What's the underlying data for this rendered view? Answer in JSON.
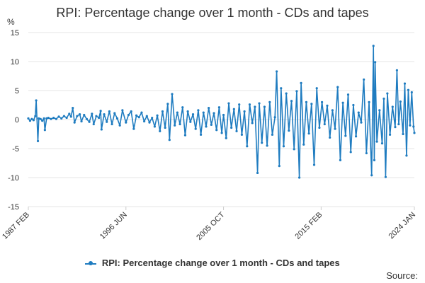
{
  "title": "RPI: Percentage change over 1 month - CDs and tapes",
  "unit_label": "%",
  "source_label": "Source:",
  "colors": {
    "series": "#1f7cc0",
    "grid": "#e6e6e6",
    "text": "#333333"
  },
  "chart_data": {
    "type": "line",
    "title": "RPI: Percentage change over 1 month - CDs and tapes",
    "xlabel": "",
    "ylabel": "%",
    "ylim": [
      -15,
      15
    ],
    "y_ticks": [
      15,
      10,
      5,
      0,
      -5,
      -10,
      -15
    ],
    "x_range": [
      "1987-02",
      "2024-01"
    ],
    "x_tick_labels": [
      {
        "label": "1987 FEB",
        "date": "1987-02"
      },
      {
        "label": "1996 JUN",
        "date": "1996-06"
      },
      {
        "label": "2005 OCT",
        "date": "2005-10"
      },
      {
        "label": "2015 FEB",
        "date": "2015-02"
      },
      {
        "label": "2024 JAN",
        "date": "2024-01"
      }
    ],
    "grid": true,
    "legend_position": "bottom",
    "series": [
      {
        "name": "RPI: Percentage change over 1 month - CDs and tapes",
        "points": [
          [
            "1987-02",
            0.2
          ],
          [
            "1987-04",
            -0.2
          ],
          [
            "1987-06",
            0.1
          ],
          [
            "1987-08",
            -0.1
          ],
          [
            "1987-10",
            0.6
          ],
          [
            "1987-11",
            3.3
          ],
          [
            "1988-01",
            -3.7
          ],
          [
            "1988-02",
            0.2
          ],
          [
            "1988-04",
            0.1
          ],
          [
            "1988-06",
            -0.2
          ],
          [
            "1988-08",
            0.2
          ],
          [
            "1988-09",
            -1.8
          ],
          [
            "1988-11",
            0.2
          ],
          [
            "1989-01",
            0.3
          ],
          [
            "1989-04",
            0.1
          ],
          [
            "1989-07",
            0.3
          ],
          [
            "1989-10",
            0.1
          ],
          [
            "1990-01",
            0.5
          ],
          [
            "1990-04",
            0.2
          ],
          [
            "1990-07",
            0.6
          ],
          [
            "1990-10",
            0.3
          ],
          [
            "1991-01",
            1.0
          ],
          [
            "1991-03",
            0.5
          ],
          [
            "1991-05",
            2.0
          ],
          [
            "1991-07",
            -0.5
          ],
          [
            "1991-10",
            0.6
          ],
          [
            "1992-01",
            0.9
          ],
          [
            "1992-03",
            -0.3
          ],
          [
            "1992-06",
            0.8
          ],
          [
            "1992-09",
            0.1
          ],
          [
            "1992-12",
            -0.4
          ],
          [
            "1993-03",
            1.0
          ],
          [
            "1993-05",
            -0.8
          ],
          [
            "1993-08",
            0.6
          ],
          [
            "1993-11",
            0.3
          ],
          [
            "1994-01",
            1.5
          ],
          [
            "1994-02",
            -1.7
          ],
          [
            "1994-05",
            0.9
          ],
          [
            "1994-08",
            -0.4
          ],
          [
            "1994-11",
            1.4
          ],
          [
            "1995-02",
            -0.8
          ],
          [
            "1995-05",
            1.1
          ],
          [
            "1995-08",
            0.2
          ],
          [
            "1995-11",
            -1.0
          ],
          [
            "1996-02",
            1.6
          ],
          [
            "1996-06",
            -0.5
          ],
          [
            "1996-09",
            0.8
          ],
          [
            "1996-12",
            1.4
          ],
          [
            "1997-03",
            -1.6
          ],
          [
            "1997-06",
            0.7
          ],
          [
            "1997-09",
            0.4
          ],
          [
            "1997-12",
            1.2
          ],
          [
            "1998-03",
            -0.3
          ],
          [
            "1998-06",
            0.6
          ],
          [
            "1998-09",
            -0.5
          ],
          [
            "1998-12",
            0.3
          ],
          [
            "1999-03",
            -1.2
          ],
          [
            "1999-06",
            0.7
          ],
          [
            "1999-09",
            -2.0
          ],
          [
            "1999-12",
            1.4
          ],
          [
            "2000-03",
            -1.4
          ],
          [
            "2000-06",
            2.7
          ],
          [
            "2000-08",
            -3.5
          ],
          [
            "2000-11",
            4.4
          ],
          [
            "2001-02",
            -1.0
          ],
          [
            "2001-05",
            1.2
          ],
          [
            "2001-08",
            -0.8
          ],
          [
            "2001-11",
            2.1
          ],
          [
            "2002-02",
            -2.7
          ],
          [
            "2002-05",
            1.4
          ],
          [
            "2002-08",
            -0.4
          ],
          [
            "2002-11",
            0.9
          ],
          [
            "2003-02",
            -1.6
          ],
          [
            "2003-05",
            1.6
          ],
          [
            "2003-08",
            -2.6
          ],
          [
            "2003-11",
            1.2
          ],
          [
            "2004-02",
            -1.2
          ],
          [
            "2004-05",
            2.0
          ],
          [
            "2004-08",
            -0.9
          ],
          [
            "2004-11",
            1.1
          ],
          [
            "2005-02",
            -1.8
          ],
          [
            "2005-05",
            2.1
          ],
          [
            "2005-08",
            -2.3
          ],
          [
            "2005-10",
            0.8
          ],
          [
            "2006-01",
            -3.2
          ],
          [
            "2006-04",
            2.8
          ],
          [
            "2006-07",
            -1.4
          ],
          [
            "2006-10",
            1.8
          ],
          [
            "2007-01",
            -2.0
          ],
          [
            "2007-04",
            2.6
          ],
          [
            "2007-07",
            -2.6
          ],
          [
            "2007-10",
            1.4
          ],
          [
            "2008-01",
            -4.6
          ],
          [
            "2008-04",
            2.6
          ],
          [
            "2008-07",
            -0.6
          ],
          [
            "2008-10",
            2.2
          ],
          [
            "2009-01",
            -9.2
          ],
          [
            "2009-03",
            2.8
          ],
          [
            "2009-06",
            -4.0
          ],
          [
            "2009-09",
            2.2
          ],
          [
            "2009-12",
            -4.5
          ],
          [
            "2010-03",
            3.0
          ],
          [
            "2010-06",
            -2.6
          ],
          [
            "2010-09",
            0.4
          ],
          [
            "2010-11",
            8.3
          ],
          [
            "2011-02",
            -8.0
          ],
          [
            "2011-04",
            5.4
          ],
          [
            "2011-07",
            -4.6
          ],
          [
            "2011-10",
            4.5
          ],
          [
            "2012-01",
            -1.9
          ],
          [
            "2012-04",
            3.2
          ],
          [
            "2012-07",
            -5.1
          ],
          [
            "2012-10",
            4.9
          ],
          [
            "2013-01",
            -10.0
          ],
          [
            "2013-03",
            6.3
          ],
          [
            "2013-06",
            -4.3
          ],
          [
            "2013-09",
            3.0
          ],
          [
            "2013-12",
            -2.4
          ],
          [
            "2014-03",
            2.7
          ],
          [
            "2014-06",
            -7.8
          ],
          [
            "2014-09",
            5.4
          ],
          [
            "2014-12",
            -1.4
          ],
          [
            "2015-03",
            3.0
          ],
          [
            "2015-06",
            -0.8
          ],
          [
            "2015-09",
            2.4
          ],
          [
            "2015-12",
            -3.1
          ],
          [
            "2016-03",
            1.6
          ],
          [
            "2016-06",
            -1.6
          ],
          [
            "2016-09",
            5.6
          ],
          [
            "2016-12",
            -7.0
          ],
          [
            "2017-03",
            2.9
          ],
          [
            "2017-06",
            -2.8
          ],
          [
            "2017-09",
            4.3
          ],
          [
            "2017-12",
            -5.6
          ],
          [
            "2018-03",
            2.5
          ],
          [
            "2018-06",
            -2.9
          ],
          [
            "2018-09",
            1.2
          ],
          [
            "2018-12",
            -0.5
          ],
          [
            "2019-03",
            6.9
          ],
          [
            "2019-06",
            -5.8
          ],
          [
            "2019-09",
            3.0
          ],
          [
            "2019-12",
            -9.6
          ],
          [
            "2020-02",
            12.7
          ],
          [
            "2020-03",
            -7.0
          ],
          [
            "2020-04",
            9.9
          ],
          [
            "2020-06",
            -3.8
          ],
          [
            "2020-09",
            1.6
          ],
          [
            "2020-12",
            -4.1
          ],
          [
            "2021-02",
            3.6
          ],
          [
            "2021-04",
            -9.9
          ],
          [
            "2021-06",
            4.5
          ],
          [
            "2021-09",
            -2.6
          ],
          [
            "2021-12",
            2.2
          ],
          [
            "2022-03",
            -1.3
          ],
          [
            "2022-05",
            8.5
          ],
          [
            "2022-07",
            -0.8
          ],
          [
            "2022-09",
            3.1
          ],
          [
            "2022-12",
            -2.5
          ],
          [
            "2023-02",
            6.2
          ],
          [
            "2023-04",
            -6.2
          ],
          [
            "2023-06",
            5.1
          ],
          [
            "2023-08",
            -1.0
          ],
          [
            "2023-10",
            4.7
          ],
          [
            "2023-12",
            -1.2
          ],
          [
            "2024-01",
            -2.3
          ]
        ]
      }
    ]
  }
}
